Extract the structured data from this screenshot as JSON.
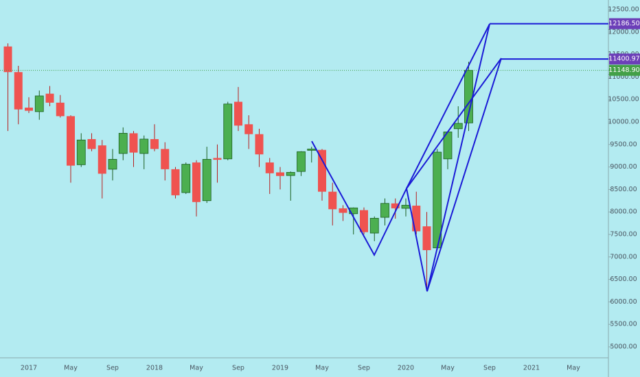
{
  "chart_data": {
    "type": "candlestick",
    "categories": [
      null,
      null,
      "2017",
      null,
      null,
      null,
      "May",
      null,
      null,
      null,
      "Sep",
      null,
      null,
      null,
      "2018",
      null,
      null,
      null,
      "May",
      null,
      null,
      null,
      "Sep",
      null,
      null,
      null,
      "2019",
      null,
      null,
      null,
      "May",
      null,
      null,
      null,
      "Sep",
      null,
      null,
      null,
      "2020",
      null,
      null,
      null,
      "May",
      null,
      null,
      null,
      "Sep",
      null,
      null,
      null,
      "2021",
      null,
      null,
      null,
      "May",
      null,
      null,
      null
    ],
    "open": [
      11680,
      11110,
      10320,
      10230,
      10630,
      10430,
      10130,
      9050,
      9620,
      9480,
      8950,
      9300,
      9750,
      9300,
      9620,
      9400,
      8950,
      8430,
      9100,
      8250,
      9200,
      9180,
      10450,
      9950,
      9730,
      9100,
      8880,
      8810,
      8900,
      9370,
      9380,
      8450,
      8080,
      7960,
      8040,
      7530,
      7880,
      8190,
      8080,
      8140,
      7680,
      7200,
      9180,
      9850,
      9980,
      null,
      null,
      null,
      null,
      null,
      null,
      null,
      null,
      null,
      null,
      null,
      null,
      null
    ],
    "high": [
      11750,
      11250,
      10550,
      10700,
      10800,
      10600,
      10150,
      9750,
      9750,
      9600,
      9400,
      9880,
      9800,
      9700,
      9950,
      9550,
      9000,
      9100,
      9150,
      9450,
      9500,
      10450,
      10780,
      10150,
      9850,
      9200,
      9000,
      8900,
      9350,
      9450,
      9400,
      8650,
      8150,
      8100,
      8100,
      7900,
      8300,
      8300,
      8300,
      8450,
      8000,
      9400,
      9800,
      10350,
      11340,
      null,
      null,
      null,
      null,
      null,
      null,
      null,
      null,
      null,
      null,
      null,
      null,
      null
    ],
    "low": [
      9800,
      9950,
      10200,
      10050,
      10350,
      10100,
      8650,
      9000,
      9350,
      8300,
      8700,
      9150,
      9000,
      8950,
      9350,
      8700,
      8300,
      8400,
      7900,
      8200,
      8650,
      9150,
      9800,
      9400,
      9000,
      8400,
      8500,
      8250,
      8800,
      9100,
      8250,
      7700,
      7800,
      7500,
      7500,
      7350,
      7700,
      7850,
      7900,
      7500,
      6250,
      7150,
      8950,
      9650,
      9800,
      null,
      null,
      null,
      null,
      null,
      null,
      null,
      null,
      null,
      null,
      null,
      null,
      null
    ],
    "close": [
      11110,
      10280,
      10250,
      10580,
      10430,
      10130,
      9030,
      9600,
      9400,
      8850,
      9170,
      9750,
      9320,
      9620,
      9400,
      8950,
      8370,
      9060,
      8220,
      9170,
      9160,
      10400,
      9920,
      9730,
      9280,
      8860,
      8800,
      8880,
      9340,
      9400,
      8450,
      8060,
      7980,
      8090,
      7550,
      7860,
      8190,
      8080,
      8150,
      7570,
      7150,
      9330,
      9780,
      9970,
      11148.9,
      null,
      null,
      null,
      null,
      null,
      null,
      null,
      null,
      null,
      null,
      null,
      null,
      null
    ],
    "up_color": "#4caf50",
    "down_color": "#ef5350",
    "ylim": [
      4750,
      12800
    ],
    "yticks": [
      {
        "value": 5000,
        "label": "5000.00"
      },
      {
        "value": 5500,
        "label": "5500.00"
      },
      {
        "value": 6000,
        "label": "6000.00"
      },
      {
        "value": 6500,
        "label": "6500.00"
      },
      {
        "value": 7000,
        "label": "7000.00"
      },
      {
        "value": 7500,
        "label": "7500.00"
      },
      {
        "value": 8000,
        "label": "8000.00"
      },
      {
        "value": 8500,
        "label": "8500.00"
      },
      {
        "value": 9000,
        "label": "9000.00"
      },
      {
        "value": 9500,
        "label": "9500.00"
      },
      {
        "value": 10000,
        "label": "10000.00"
      },
      {
        "value": 10500,
        "label": "10500.00"
      },
      {
        "value": 11000,
        "label": "11000.00"
      },
      {
        "value": 11500,
        "label": "11500.00"
      },
      {
        "value": 12000,
        "label": "12000.00"
      },
      {
        "value": 12500,
        "label": "12500.00"
      }
    ],
    "levels": [
      {
        "value": 12186.5,
        "label": "12186.50",
        "color": "#6c3fb8"
      },
      {
        "value": 11400.97,
        "label": "11400.97",
        "color": "#6c3fb8"
      },
      {
        "value": 11148.9,
        "label": "11148.90",
        "color": "#43a047"
      }
    ]
  }
}
